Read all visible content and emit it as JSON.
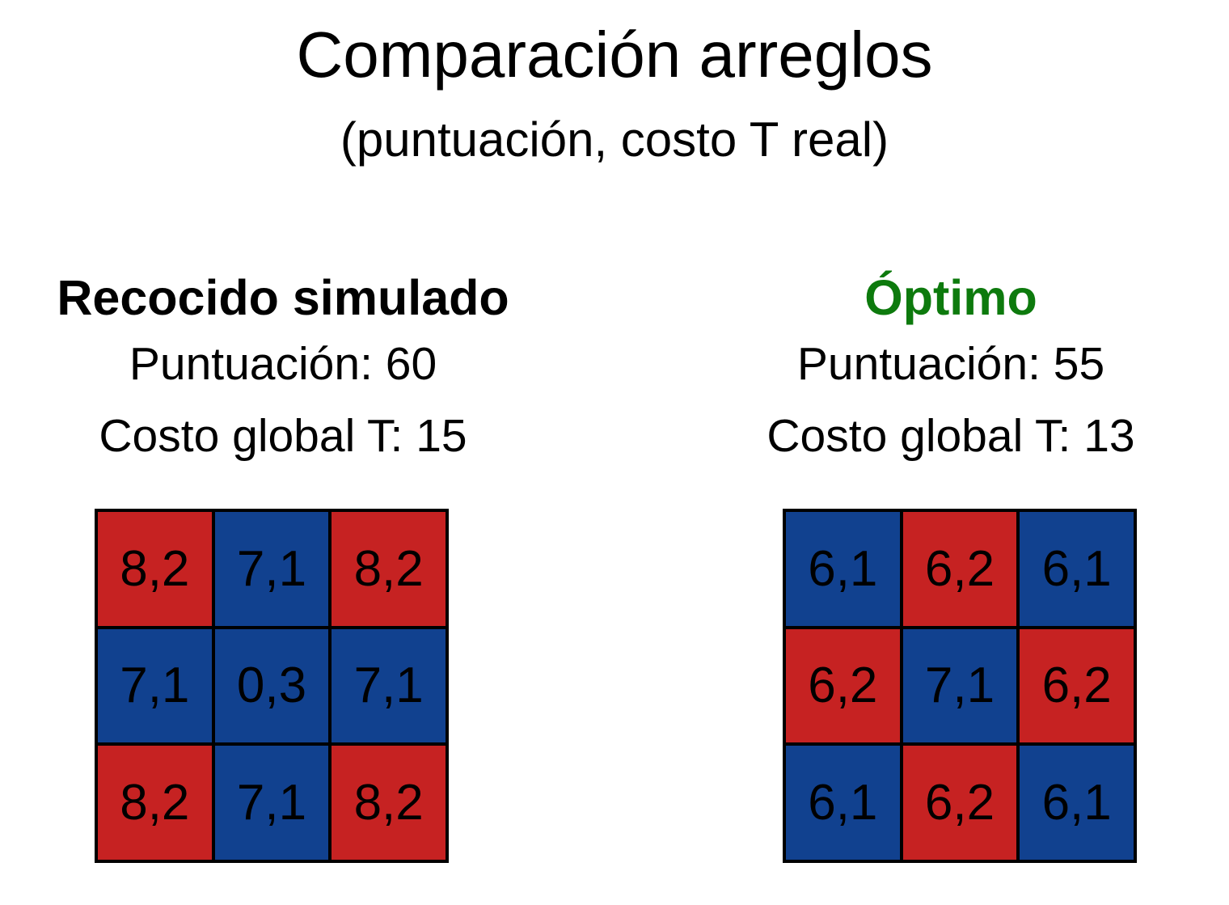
{
  "title": "Comparación arreglos",
  "subtitle": "(puntuación, costo T real)",
  "colors": {
    "red": "#c62222",
    "blue": "#11418f",
    "optimal_heading": "#0d7a0d",
    "annealing_heading": "#000000"
  },
  "panels": [
    {
      "heading": "Recocido simulado",
      "score_line": "Puntuación: 60",
      "cost_line": "Costo global T: 15",
      "cells": [
        {
          "text": "8,2",
          "color": "red"
        },
        {
          "text": "7,1",
          "color": "blue"
        },
        {
          "text": "8,2",
          "color": "red"
        },
        {
          "text": "7,1",
          "color": "blue"
        },
        {
          "text": "0,3",
          "color": "blue"
        },
        {
          "text": "7,1",
          "color": "blue"
        },
        {
          "text": "8,2",
          "color": "red"
        },
        {
          "text": "7,1",
          "color": "blue"
        },
        {
          "text": "8,2",
          "color": "red"
        }
      ]
    },
    {
      "heading": "Óptimo",
      "score_line": "Puntuación: 55",
      "cost_line": "Costo global T: 13",
      "cells": [
        {
          "text": "6,1",
          "color": "blue"
        },
        {
          "text": "6,2",
          "color": "red"
        },
        {
          "text": "6,1",
          "color": "blue"
        },
        {
          "text": "6,2",
          "color": "red"
        },
        {
          "text": "7,1",
          "color": "blue"
        },
        {
          "text": "6,2",
          "color": "red"
        },
        {
          "text": "6,1",
          "color": "blue"
        },
        {
          "text": "6,2",
          "color": "red"
        },
        {
          "text": "6,1",
          "color": "blue"
        }
      ]
    }
  ]
}
